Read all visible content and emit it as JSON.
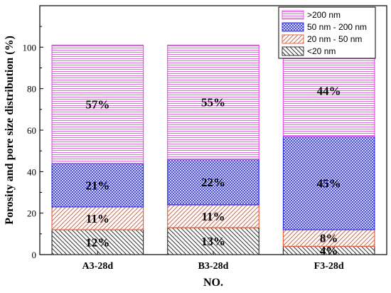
{
  "chart_data": {
    "type": "bar",
    "stacked": true,
    "categories": [
      "A3-28d",
      "B3-28d",
      "F3-28d"
    ],
    "series": [
      {
        "name": "<20 nm",
        "values": [
          12,
          13,
          4
        ],
        "labels": [
          "12%",
          "13%",
          "4%"
        ],
        "color": "#333333",
        "pattern": "diag-left"
      },
      {
        "name": "20 nm - 50 nm",
        "values": [
          11,
          11,
          8
        ],
        "labels": [
          "11%",
          "11%",
          "8%"
        ],
        "color": "#e8623f",
        "pattern": "diag-right"
      },
      {
        "name": "50 nm - 200 nm",
        "values": [
          21,
          22,
          45
        ],
        "labels": [
          "21%",
          "22%",
          "45%"
        ],
        "color": "#2d2fe6",
        "pattern": "crosshatch"
      },
      {
        "name": ">200 nm",
        "values": [
          57,
          55,
          44
        ],
        "labels": [
          "57%",
          "55%",
          "44%"
        ],
        "color": "#e455e4",
        "pattern": "horizontal"
      }
    ],
    "legend_entries": [
      ">200 nm",
      "50 nm - 200 nm",
      "20 nm - 50 nm",
      "<20 nm"
    ],
    "title": "",
    "xlabel": "NO.",
    "ylabel": "Porosity and pore size distribution (%)",
    "ylim": [
      0,
      120
    ],
    "yticks": [
      0,
      20,
      40,
      60,
      80,
      100
    ],
    "legend_position": "top-right",
    "grid": false
  }
}
